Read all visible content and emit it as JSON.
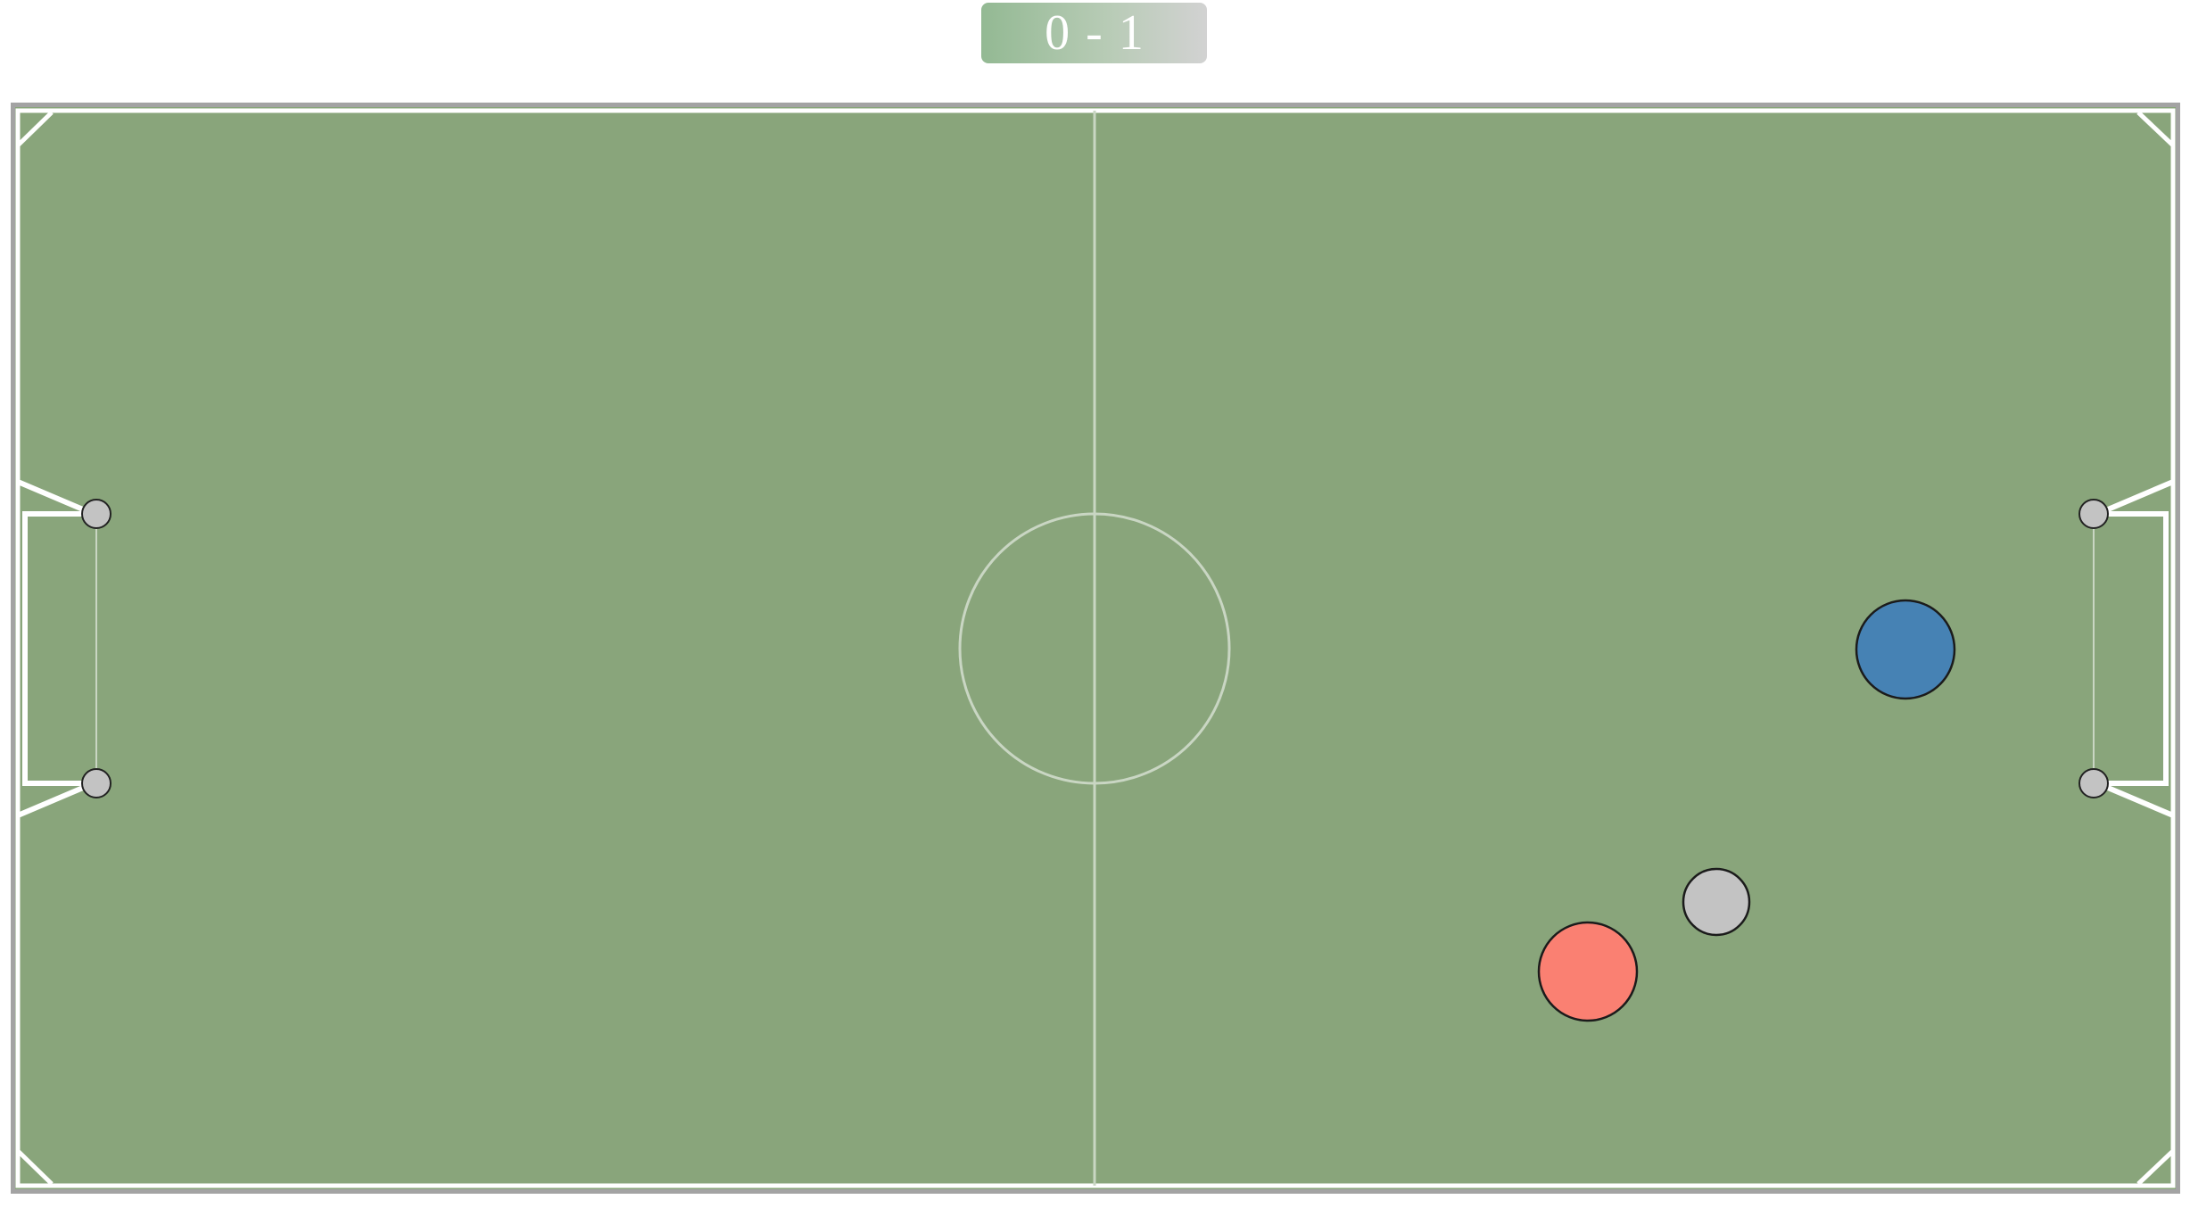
{
  "scoreboard": {
    "home_score": "0",
    "separator": "-",
    "away_score": "1"
  },
  "colors": {
    "pitch": "#89a57b",
    "lines": "#ffffff",
    "midline": "#c9d6c3",
    "frame": "#a3a3a3",
    "post": "#c3c3c3",
    "red_player": "#fa8072",
    "blue_player": "#4682b4",
    "ball": "#c3c3c3"
  },
  "game": {
    "players": [
      {
        "team": "red",
        "name": "red-player"
      },
      {
        "team": "blue",
        "name": "blue-player"
      }
    ],
    "ball": {
      "name": "ball"
    }
  }
}
